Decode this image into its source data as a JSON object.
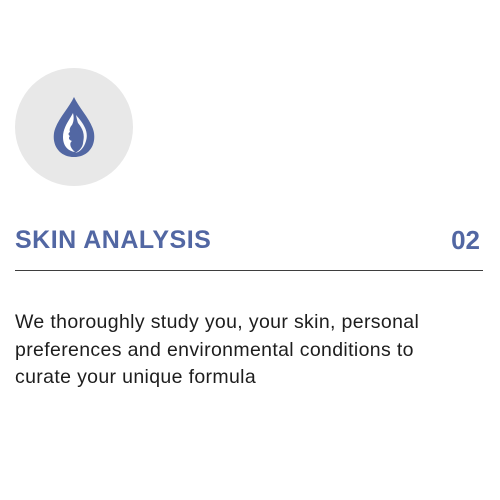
{
  "feature": {
    "icon": "water-drop-face-icon",
    "title": "SKIN ANALYSIS",
    "step_number": "02",
    "description": "We thoroughly study you, your skin, personal preferences and environmental conditions to curate your unique formula"
  },
  "colors": {
    "accent": "#5267a3",
    "icon_background": "#e8e8e8",
    "divider": "#3e3e3e",
    "body_text": "#1d1d1d",
    "page_background": "#ffffff"
  }
}
